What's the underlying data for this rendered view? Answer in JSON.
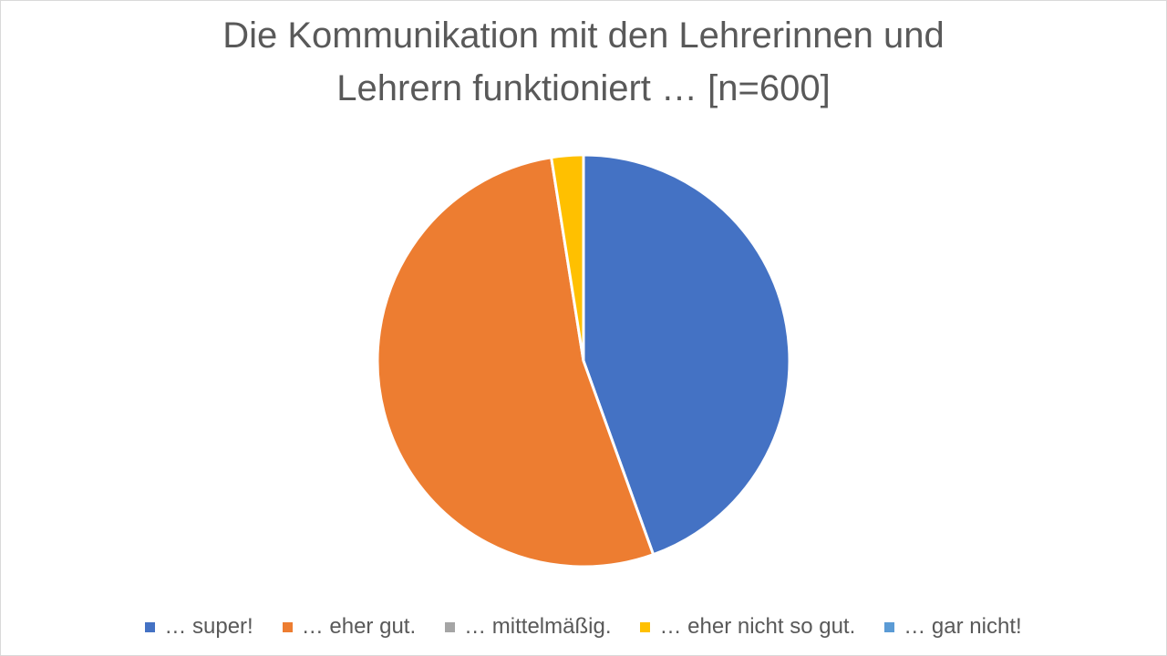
{
  "chart_data": {
    "type": "pie",
    "title_lines": [
      "Die Kommunikation mit den Lehrerinnen und",
      "Lehrern funktioniert … [n=600]"
    ],
    "categories": [
      "… super!",
      "… eher gut.",
      "… mittelmäßig.",
      "… eher nicht so gut.",
      "… gar nicht!"
    ],
    "values": [
      44.5,
      53.0,
      0,
      2.5,
      0
    ],
    "unit": "%",
    "colors": [
      "#4472C4",
      "#ED7D31",
      "#A5A5A5",
      "#FFC000",
      "#5B9BD5"
    ],
    "start_angle": "top",
    "direction": "clockwise",
    "legend_position": "bottom"
  }
}
